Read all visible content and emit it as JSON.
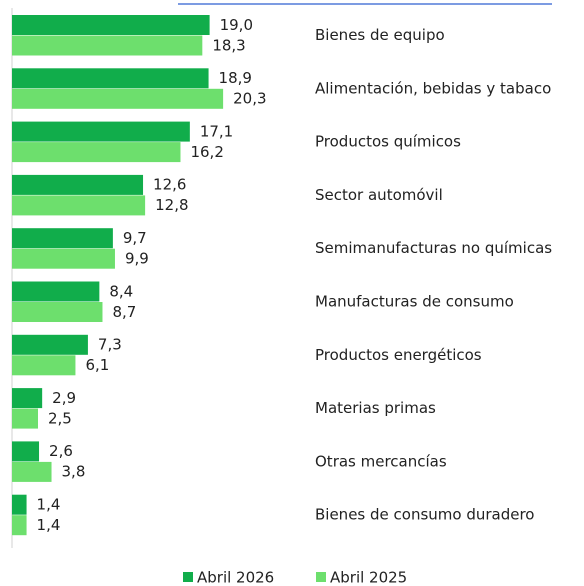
{
  "chart_data": {
    "type": "hbar",
    "categories": [
      "Bienes de equipo",
      "Alimentación, bebidas y tabaco",
      "Productos químicos",
      "Sector automóvil",
      "Semimanufacturas no químicas",
      "Manufacturas de consumo",
      "Productos energéticos",
      "Materias primas",
      "Otras mercancías",
      "Bienes de consumo duradero"
    ],
    "series": [
      {
        "name": "Abril 2026",
        "color": "#11ad4b",
        "values": [
          19.0,
          18.9,
          17.1,
          12.6,
          9.7,
          8.4,
          7.3,
          2.9,
          2.6,
          1.4
        ],
        "value_labels": [
          "19,0",
          "18,9",
          "17,1",
          "12,6",
          "9,7",
          "8,4",
          "7,3",
          "2,9",
          "2,6",
          "1,4"
        ]
      },
      {
        "name": "Abril 2025",
        "color": "#6ddf6d",
        "values": [
          18.3,
          20.3,
          16.2,
          12.8,
          9.9,
          8.7,
          6.1,
          2.5,
          3.8,
          1.4
        ],
        "value_labels": [
          "18,3",
          "20,3",
          "16,2",
          "12,8",
          "9,9",
          "8,7",
          "6,1",
          "2,5",
          "3,8",
          "1,4"
        ]
      }
    ],
    "legend": "bottom"
  }
}
